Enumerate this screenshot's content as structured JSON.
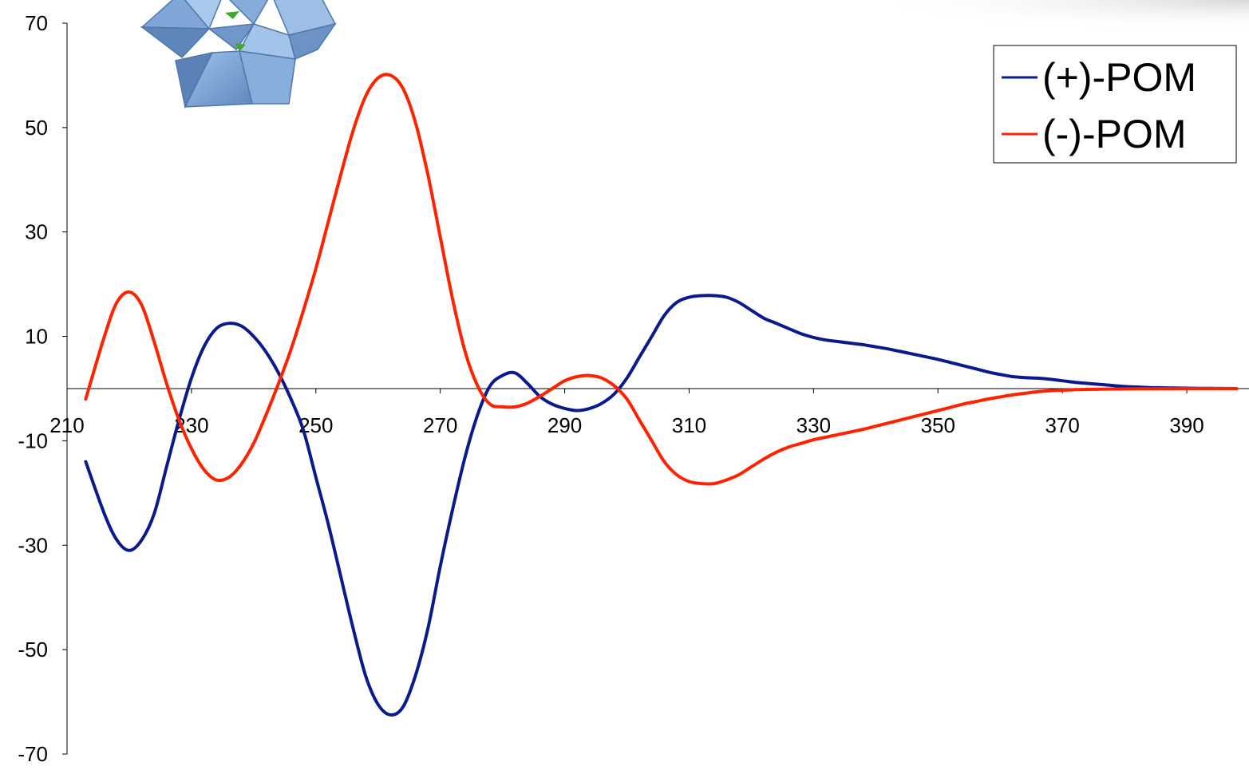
{
  "chart_data": {
    "type": "line",
    "title": "",
    "xlabel": "",
    "ylabel": "",
    "xlim": [
      210,
      400
    ],
    "ylim": [
      -70,
      70
    ],
    "x_ticks": [
      "210",
      "230",
      "250",
      "270",
      "290",
      "310",
      "330",
      "350",
      "370",
      "390"
    ],
    "y_ticks": [
      "70",
      "50",
      "30",
      "10",
      "-10",
      "-30",
      "-50",
      "-70"
    ],
    "grid": false,
    "legend_position": "top-right",
    "inset_image": "polyoxometalate-cluster",
    "series": [
      {
        "name": "(+)-POM",
        "color": "#0a1a8c",
        "x": [
          213,
          216,
          218,
          220,
          222,
          224,
          226,
          228,
          230,
          232,
          234,
          236,
          238,
          240,
          242,
          244,
          246,
          248,
          250,
          252,
          254,
          256,
          258,
          260,
          262,
          264,
          266,
          268,
          270,
          272,
          274,
          276,
          278,
          280,
          282,
          284,
          286,
          288,
          290,
          292,
          294,
          296,
          298,
          300,
          302,
          304,
          306,
          308,
          310,
          312,
          314,
          316,
          318,
          320,
          322,
          324,
          326,
          328,
          330,
          332,
          334,
          336,
          338,
          340,
          342,
          344,
          346,
          348,
          350,
          352,
          354,
          356,
          358,
          360,
          362,
          364,
          366,
          368,
          370,
          372,
          374,
          376,
          378,
          380,
          382,
          384,
          386,
          388,
          390,
          392,
          394,
          396,
          398
        ],
        "y": [
          -14,
          -24,
          -29,
          -31,
          -29,
          -24,
          -15,
          -6,
          2,
          8,
          11.5,
          12.5,
          12,
          10,
          7,
          3,
          -2,
          -8,
          -17,
          -26,
          -36,
          -46,
          -55,
          -60.5,
          -62.5,
          -61,
          -55,
          -46,
          -34,
          -23,
          -13,
          -5,
          0.5,
          2.5,
          3,
          1,
          -1.5,
          -3,
          -3.8,
          -4.2,
          -3.8,
          -2.8,
          -1,
          2,
          6,
          10,
          14,
          16.5,
          17.5,
          17.8,
          17.8,
          17.5,
          16.5,
          15,
          13.5,
          12.5,
          11.5,
          10.5,
          9.8,
          9.3,
          9,
          8.7,
          8.4,
          8,
          7.6,
          7.1,
          6.6,
          6.1,
          5.6,
          5,
          4.4,
          3.8,
          3.2,
          2.7,
          2.3,
          2.1,
          2,
          1.8,
          1.5,
          1.2,
          1,
          0.8,
          0.6,
          0.4,
          0.3,
          0.2,
          0.15,
          0.1,
          0.08,
          0.05,
          0.03,
          0.02,
          0
        ]
      },
      {
        "name": "(-)-POM",
        "color": "#ff2200",
        "x": [
          213,
          216,
          218,
          220,
          222,
          224,
          226,
          228,
          230,
          232,
          234,
          236,
          238,
          240,
          242,
          244,
          246,
          248,
          250,
          252,
          254,
          256,
          258,
          260,
          262,
          264,
          266,
          268,
          270,
          272,
          274,
          276,
          278,
          280,
          282,
          284,
          286,
          288,
          290,
          292,
          294,
          296,
          298,
          300,
          302,
          304,
          306,
          308,
          310,
          312,
          314,
          316,
          318,
          320,
          322,
          324,
          326,
          328,
          330,
          332,
          334,
          336,
          338,
          340,
          342,
          344,
          346,
          348,
          350,
          352,
          354,
          356,
          358,
          360,
          362,
          364,
          366,
          368,
          370,
          372,
          374,
          376,
          378,
          380,
          382,
          384,
          386,
          388,
          390,
          392,
          394,
          396,
          398
        ],
        "y": [
          -2,
          10,
          16.5,
          18.5,
          16,
          9,
          1,
          -6,
          -11.5,
          -15.5,
          -17.5,
          -17,
          -14.5,
          -10.5,
          -5,
          1,
          7.5,
          15,
          23,
          32,
          41,
          49.5,
          56,
          59.5,
          60,
          57.5,
          51,
          41,
          29,
          17,
          7,
          0.5,
          -3,
          -3.5,
          -3.5,
          -2.8,
          -1.5,
          0,
          1.5,
          2.3,
          2.5,
          2,
          0.5,
          -2,
          -6,
          -10,
          -14,
          -16.5,
          -17.8,
          -18.2,
          -18.2,
          -17.5,
          -16.5,
          -15,
          -13.5,
          -12.2,
          -11.2,
          -10.5,
          -9.8,
          -9.3,
          -8.8,
          -8.3,
          -7.8,
          -7.2,
          -6.6,
          -6,
          -5.4,
          -4.8,
          -4.2,
          -3.6,
          -3,
          -2.5,
          -2,
          -1.6,
          -1.2,
          -0.9,
          -0.6,
          -0.4,
          -0.3,
          -0.2,
          -0.15,
          -0.1,
          -0.08,
          -0.06,
          -0.04,
          -0.03,
          -0.02,
          -0.01,
          0,
          0,
          0,
          0,
          0
        ]
      }
    ]
  }
}
